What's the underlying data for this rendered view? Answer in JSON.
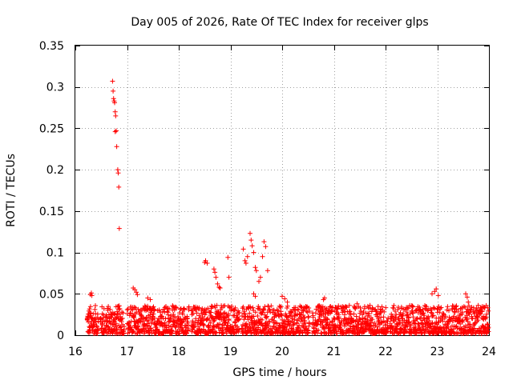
{
  "chart_data": {
    "type": "scatter",
    "title": "Day 005 of 2026, Rate Of TEC Index for receiver glps",
    "xlabel": "GPS time / hours",
    "ylabel": "ROTI / TECUs",
    "xlim": [
      16,
      24
    ],
    "ylim": [
      0,
      0.35
    ],
    "xticks": [
      16,
      17,
      18,
      19,
      20,
      21,
      22,
      23,
      24
    ],
    "yticks": [
      0,
      0.05,
      0.1,
      0.15,
      0.2,
      0.25,
      0.3,
      0.35
    ],
    "ytick_labels": [
      "0",
      "0.05",
      "0.1",
      "0.15",
      "0.2",
      "0.25",
      "0.3",
      "0.35"
    ],
    "grid": true,
    "marker": "+",
    "color": "#ff0000",
    "series": [
      {
        "name": "ROTI",
        "points": [
          [
            16.29,
            0.049
          ],
          [
            16.31,
            0.051
          ],
          [
            16.32,
            0.048
          ],
          [
            16.72,
            0.307
          ],
          [
            16.73,
            0.295
          ],
          [
            16.74,
            0.286
          ],
          [
            16.75,
            0.283
          ],
          [
            16.76,
            0.281
          ],
          [
            16.77,
            0.27
          ],
          [
            16.78,
            0.265
          ],
          [
            16.77,
            0.246
          ],
          [
            16.79,
            0.247
          ],
          [
            16.8,
            0.228
          ],
          [
            16.82,
            0.2
          ],
          [
            16.83,
            0.196
          ],
          [
            16.84,
            0.179
          ],
          [
            16.85,
            0.129
          ],
          [
            17.12,
            0.057
          ],
          [
            17.15,
            0.055
          ],
          [
            17.18,
            0.052
          ],
          [
            17.2,
            0.049
          ],
          [
            17.4,
            0.045
          ],
          [
            17.45,
            0.043
          ],
          [
            18.5,
            0.088
          ],
          [
            18.52,
            0.09
          ],
          [
            18.55,
            0.087
          ],
          [
            18.68,
            0.08
          ],
          [
            18.7,
            0.076
          ],
          [
            18.72,
            0.07
          ],
          [
            18.75,
            0.062
          ],
          [
            18.78,
            0.058
          ],
          [
            18.8,
            0.057
          ],
          [
            18.95,
            0.094
          ],
          [
            18.97,
            0.07
          ],
          [
            19.25,
            0.104
          ],
          [
            19.28,
            0.09
          ],
          [
            19.3,
            0.087
          ],
          [
            19.33,
            0.095
          ],
          [
            19.38,
            0.123
          ],
          [
            19.4,
            0.115
          ],
          [
            19.42,
            0.108
          ],
          [
            19.45,
            0.1
          ],
          [
            19.48,
            0.082
          ],
          [
            19.5,
            0.078
          ],
          [
            19.55,
            0.065
          ],
          [
            19.58,
            0.07
          ],
          [
            19.62,
            0.095
          ],
          [
            19.65,
            0.113
          ],
          [
            19.68,
            0.107
          ],
          [
            19.72,
            0.078
          ],
          [
            19.45,
            0.05
          ],
          [
            19.48,
            0.047
          ],
          [
            20,
            0.047
          ],
          [
            20.05,
            0.044
          ],
          [
            20.1,
            0.04
          ],
          [
            20.8,
            0.043
          ],
          [
            20.82,
            0.045
          ],
          [
            21.45,
            0.038
          ],
          [
            21.7,
            0.036
          ],
          [
            22.6,
            0.03
          ],
          [
            22.9,
            0.05
          ],
          [
            22.95,
            0.053
          ],
          [
            22.98,
            0.056
          ],
          [
            23.02,
            0.048
          ],
          [
            23.55,
            0.05
          ],
          [
            23.58,
            0.046
          ],
          [
            23.6,
            0.04
          ],
          [
            23.9,
            0.034
          ]
        ],
        "background_band": {
          "x_range": [
            16.23,
            24
          ],
          "y_range": [
            0.002,
            0.036
          ],
          "gaps": [
            [
              16.45,
              16.48
            ],
            [
              16.95,
              17.0
            ],
            [
              18.2,
              18.24
            ],
            [
              19.18,
              19.22
            ],
            [
              20.53,
              20.58
            ],
            [
              22.05,
              22.08
            ]
          ]
        }
      }
    ]
  }
}
